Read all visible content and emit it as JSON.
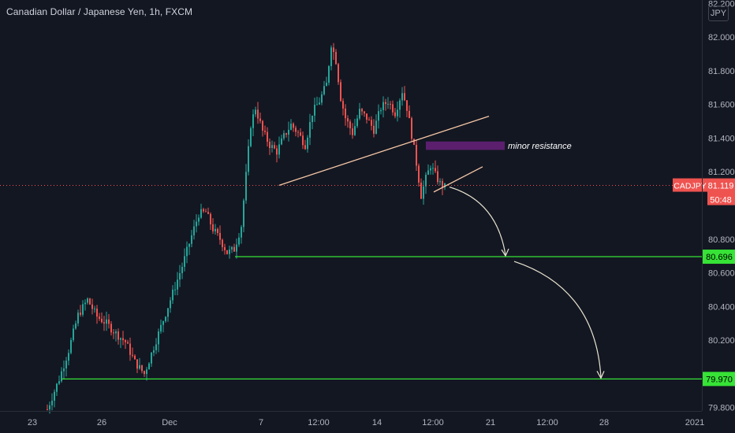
{
  "header": {
    "title": "Canadian Dollar / Japanese Yen, 1h, FXCM",
    "currency": "JPY"
  },
  "colors": {
    "background": "#131722",
    "up": "#26a69a",
    "down": "#ef5350",
    "trendline": "#f5c6a5",
    "support": "#36e336",
    "zone": "#5b1f6e",
    "arrow": "#e8e3cf",
    "tag": "#ef5350",
    "support_tag": "#36e336"
  },
  "chart_data": {
    "type": "candlestick",
    "symbol": "CADJPY",
    "x_ticks": [
      "23",
      "26",
      "Dec",
      "7",
      "12:00",
      "14",
      "12:00",
      "21",
      "12:00",
      "28",
      "2021"
    ],
    "y_ticks": [
      "82.200",
      "82.000",
      "81.800",
      "81.600",
      "81.400",
      "81.200",
      "80.800",
      "80.600",
      "80.400",
      "80.200",
      "79.800"
    ],
    "ylim": [
      79.78,
      82.22
    ],
    "price_path": [
      [
        0,
        79.79
      ],
      [
        5,
        79.97
      ],
      [
        9,
        80.14
      ],
      [
        13,
        80.35
      ],
      [
        17,
        80.44
      ],
      [
        21,
        80.34
      ],
      [
        25,
        80.3
      ],
      [
        29,
        80.24
      ],
      [
        33,
        80.19
      ],
      [
        37,
        80.07
      ],
      [
        41,
        80.0
      ],
      [
        45,
        80.16
      ],
      [
        49,
        80.32
      ],
      [
        53,
        80.48
      ],
      [
        57,
        80.64
      ],
      [
        61,
        80.82
      ],
      [
        64,
        80.95
      ],
      [
        67,
        80.96
      ],
      [
        70,
        80.86
      ],
      [
        73,
        80.8
      ],
      [
        76,
        80.72
      ],
      [
        79,
        80.74
      ],
      [
        82,
        80.88
      ],
      [
        84,
        81.18
      ],
      [
        86,
        81.48
      ],
      [
        88,
        81.58
      ],
      [
        91,
        81.44
      ],
      [
        94,
        81.36
      ],
      [
        97,
        81.32
      ],
      [
        100,
        81.41
      ],
      [
        103,
        81.48
      ],
      [
        106,
        81.43
      ],
      [
        109,
        81.36
      ],
      [
        112,
        81.55
      ],
      [
        115,
        81.62
      ],
      [
        118,
        81.72
      ],
      [
        120,
        81.96
      ],
      [
        122,
        81.86
      ],
      [
        124,
        81.64
      ],
      [
        126,
        81.52
      ],
      [
        129,
        81.43
      ],
      [
        132,
        81.56
      ],
      [
        135,
        81.52
      ],
      [
        138,
        81.45
      ],
      [
        141,
        81.58
      ],
      [
        144,
        81.62
      ],
      [
        147,
        81.55
      ],
      [
        150,
        81.68
      ],
      [
        152,
        81.58
      ],
      [
        154,
        81.42
      ],
      [
        156,
        81.25
      ],
      [
        158,
        81.06
      ],
      [
        160,
        81.16
      ],
      [
        162,
        81.24
      ],
      [
        164,
        81.18
      ],
      [
        166,
        81.13
      ],
      [
        168,
        81.11
      ]
    ],
    "last_price": "81.119",
    "countdown": "50:48",
    "support_levels": [
      "80.696",
      "79.970"
    ],
    "annotation": "minor resistance",
    "resistance_zone": [
      81.33,
      81.38
    ]
  }
}
